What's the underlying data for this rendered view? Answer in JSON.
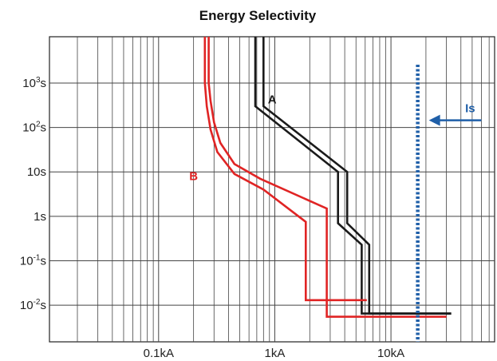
{
  "chart_data": {
    "type": "line",
    "title": "Energy Selectivity",
    "xlabel": "",
    "ylabel": "",
    "x_scale": "log",
    "y_scale": "log",
    "x_unit": "kA",
    "y_unit": "s",
    "xlim": [
      0.0115,
      78
    ],
    "ylim": [
      0.0015,
      11000
    ],
    "grid": true,
    "x_ticks": [
      {
        "value": 0.1,
        "label": "0.1kA"
      },
      {
        "value": 1,
        "label": "1kA"
      },
      {
        "value": 10,
        "label": "10kA"
      }
    ],
    "y_ticks": [
      {
        "value": 1000,
        "base": "10",
        "exp": "3",
        "unit": "s"
      },
      {
        "value": 100,
        "base": "10",
        "exp": "2",
        "unit": "s"
      },
      {
        "value": 10,
        "base": "10s",
        "exp": "",
        "unit": ""
      },
      {
        "value": 1,
        "base": "1s",
        "exp": "",
        "unit": ""
      },
      {
        "value": 0.1,
        "base": "10",
        "exp": "-1",
        "unit": "s"
      },
      {
        "value": 0.01,
        "base": "10",
        "exp": "-2",
        "unit": "s"
      }
    ],
    "series": [
      {
        "name": "A",
        "color": "#1a1a1a",
        "label_at": [
          0.95,
          350
        ],
        "lines": [
          [
            [
              0.68,
              11000
            ],
            [
              0.68,
              300
            ],
            [
              3.5,
              10
            ],
            [
              3.5,
              0.7
            ],
            [
              5.6,
              0.23
            ],
            [
              5.6,
              0.0065
            ],
            [
              33,
              0.0065
            ]
          ],
          [
            [
              0.8,
              11000
            ],
            [
              0.8,
              300
            ],
            [
              4.2,
              10
            ],
            [
              4.2,
              0.7
            ],
            [
              6.5,
              0.23
            ],
            [
              6.5,
              0.0065
            ],
            [
              33,
              0.0065
            ]
          ]
        ]
      },
      {
        "name": "B",
        "color": "#e02424",
        "label_at": [
          0.2,
          6.5
        ],
        "lines": [
          [
            [
              0.27,
              11000
            ],
            [
              0.27,
              1000
            ],
            [
              0.28,
              400
            ],
            [
              0.3,
              130
            ],
            [
              0.34,
              45
            ],
            [
              0.45,
              15
            ],
            [
              0.75,
              7
            ],
            [
              2.8,
              1.5
            ],
            [
              2.8,
              0.0055
            ],
            [
              30,
              0.0055
            ]
          ],
          [
            [
              0.25,
              11000
            ],
            [
              0.25,
              1000
            ],
            [
              0.26,
              300
            ],
            [
              0.28,
              90
            ],
            [
              0.32,
              28
            ],
            [
              0.45,
              9
            ],
            [
              0.8,
              4
            ],
            [
              1.85,
              0.75
            ],
            [
              1.85,
              0.013
            ],
            [
              6.2,
              0.013
            ]
          ]
        ]
      }
    ],
    "annotations": [
      {
        "name": "Is",
        "label": "Is",
        "type": "vertical-dotted-line",
        "x": 17,
        "color": "#1f5fa8",
        "arrow_from": [
          60,
          145
        ],
        "arrow_to": [
          17,
          145
        ]
      }
    ]
  }
}
